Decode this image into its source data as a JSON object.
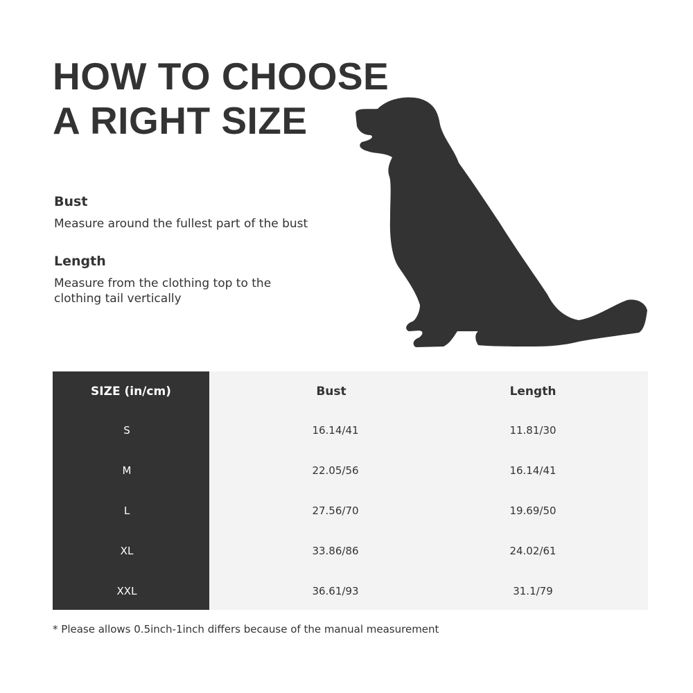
{
  "title": [
    "HOW TO CHOOSE",
    "A RIGHT SIZE"
  ],
  "measurements": [
    {
      "name": "Bust",
      "description": [
        "Measure around the fullest part of the bust"
      ]
    },
    {
      "name": "Length",
      "description": [
        "Measure from the clothing top to the",
        "clothing tail vertically"
      ]
    }
  ],
  "illustration": "sitting-dog-silhouette",
  "table": {
    "headers": [
      "SIZE  (in/cm)",
      "Bust",
      "Length"
    ],
    "rows": [
      [
        "S",
        "16.14/41",
        "11.81/30"
      ],
      [
        "M",
        "22.05/56",
        "16.14/41"
      ],
      [
        "L",
        "27.56/70",
        "19.69/50"
      ],
      [
        "XL",
        "33.86/86",
        "24.02/61"
      ],
      [
        "XXL",
        "36.61/93",
        "31.1/79"
      ]
    ],
    "colors": {
      "size_column": "#333333",
      "body": "#f3f3f3"
    }
  },
  "note": "* Please allows 0.5inch-1inch differs because of the  manual measurement"
}
